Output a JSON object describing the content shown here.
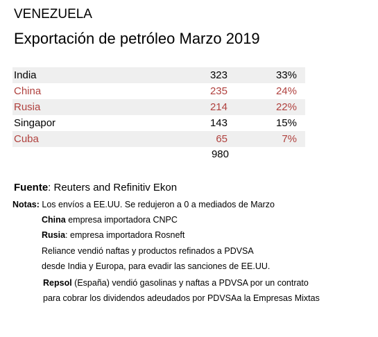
{
  "header": {
    "title": "VENEZUELA",
    "subtitle": "Exportación de petróleo Marzo 2019"
  },
  "table": {
    "rows": [
      {
        "label": "India",
        "value": "323",
        "share": "33%",
        "color": "#000000"
      },
      {
        "label": "China",
        "value": "235",
        "share": "24%",
        "color": "#b0413e"
      },
      {
        "label": "Rusia",
        "value": "214",
        "share": "22%",
        "color": "#b0413e"
      },
      {
        "label": "Singapor",
        "value": "143",
        "share": "15%",
        "color": "#000000"
      },
      {
        "label": "Cuba",
        "value": "65",
        "share": "7%",
        "color": "#b0413e"
      }
    ],
    "total": "980"
  },
  "source": {
    "label": "Fuente",
    "text": ": Reuters and Refinitiv Ekon"
  },
  "notes": [
    {
      "bold": "Notas:",
      "text": " Los envíos a EE.UU. Se redujeron a 0 a mediados de Marzo"
    },
    {
      "bold": "China",
      "text": " empresa importadora CNPC"
    },
    {
      "bold": "Rusia",
      "text": ": empresa importadora Rosneft"
    },
    {
      "text": "Reliance vendió naftas y productos refinados a PDVSA"
    },
    {
      "text": "desde India y Europa, para evadir las sanciones de EE.UU."
    },
    {
      "bold": "Repsol",
      "text": " (España) vendió gasolinas y naftas a PDVSA por un contrato"
    },
    {
      "text": "para cobrar los dividendos adeudados por PDVSAa la Empresas Mixtas"
    }
  ]
}
